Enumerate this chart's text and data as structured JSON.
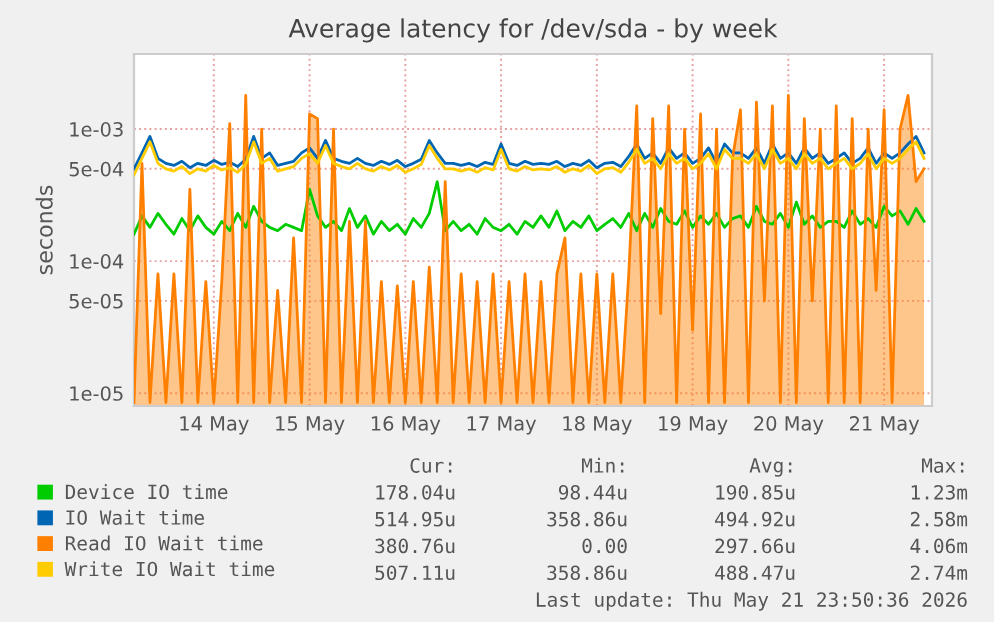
{
  "chart_data": {
    "type": "line",
    "title": "Average latency for /dev/sda - by week",
    "ylabel": "seconds",
    "log": "y",
    "ylim": [
      8e-06,
      0.0037
    ],
    "yticks": [
      {
        "value": 1e-05,
        "label": "1e-05"
      },
      {
        "value": 5e-05,
        "label": "5e-05"
      },
      {
        "value": 0.0001,
        "label": "1e-04"
      },
      {
        "value": 0.0005,
        "label": "5e-04"
      },
      {
        "value": 0.001,
        "label": "1e-03"
      }
    ],
    "xlim": [
      "2026-05-13T16:00",
      "2026-05-22T00:00"
    ],
    "xticks": [
      {
        "value": "2026-05-14T12:00",
        "label": "14 May"
      },
      {
        "value": "2026-05-15T12:00",
        "label": "15 May"
      },
      {
        "value": "2026-05-16T12:00",
        "label": "16 May"
      },
      {
        "value": "2026-05-17T12:00",
        "label": "17 May"
      },
      {
        "value": "2026-05-18T12:00",
        "label": "18 May"
      },
      {
        "value": "2026-05-19T12:00",
        "label": "19 May"
      },
      {
        "value": "2026-05-20T12:00",
        "label": "20 May"
      },
      {
        "value": "2026-05-21T12:00",
        "label": "21 May"
      }
    ],
    "grid": true,
    "legend": "bottom",
    "x": [
      "2026-05-13T16:00",
      "2026-05-13T18:00",
      "2026-05-13T20:00",
      "2026-05-13T22:00",
      "2026-05-14T00:00",
      "2026-05-14T02:00",
      "2026-05-14T04:00",
      "2026-05-14T06:00",
      "2026-05-14T08:00",
      "2026-05-14T10:00",
      "2026-05-14T12:00",
      "2026-05-14T14:00",
      "2026-05-14T16:00",
      "2026-05-14T18:00",
      "2026-05-14T20:00",
      "2026-05-14T22:00",
      "2026-05-15T00:00",
      "2026-05-15T02:00",
      "2026-05-15T04:00",
      "2026-05-15T06:00",
      "2026-05-15T08:00",
      "2026-05-15T10:00",
      "2026-05-15T12:00",
      "2026-05-15T14:00",
      "2026-05-15T16:00",
      "2026-05-15T18:00",
      "2026-05-15T20:00",
      "2026-05-15T22:00",
      "2026-05-16T00:00",
      "2026-05-16T02:00",
      "2026-05-16T04:00",
      "2026-05-16T06:00",
      "2026-05-16T08:00",
      "2026-05-16T10:00",
      "2026-05-16T12:00",
      "2026-05-16T14:00",
      "2026-05-16T16:00",
      "2026-05-16T18:00",
      "2026-05-16T20:00",
      "2026-05-16T22:00",
      "2026-05-17T00:00",
      "2026-05-17T02:00",
      "2026-05-17T04:00",
      "2026-05-17T06:00",
      "2026-05-17T08:00",
      "2026-05-17T10:00",
      "2026-05-17T12:00",
      "2026-05-17T14:00",
      "2026-05-17T16:00",
      "2026-05-17T18:00",
      "2026-05-17T20:00",
      "2026-05-17T22:00",
      "2026-05-18T00:00",
      "2026-05-18T02:00",
      "2026-05-18T04:00",
      "2026-05-18T06:00",
      "2026-05-18T08:00",
      "2026-05-18T10:00",
      "2026-05-18T12:00",
      "2026-05-18T14:00",
      "2026-05-18T16:00",
      "2026-05-18T18:00",
      "2026-05-18T20:00",
      "2026-05-18T22:00",
      "2026-05-19T00:00",
      "2026-05-19T02:00",
      "2026-05-19T04:00",
      "2026-05-19T06:00",
      "2026-05-19T08:00",
      "2026-05-19T10:00",
      "2026-05-19T12:00",
      "2026-05-19T14:00",
      "2026-05-19T16:00",
      "2026-05-19T18:00",
      "2026-05-19T20:00",
      "2026-05-19T22:00",
      "2026-05-20T00:00",
      "2026-05-20T02:00",
      "2026-05-20T04:00",
      "2026-05-20T06:00",
      "2026-05-20T08:00",
      "2026-05-20T10:00",
      "2026-05-20T12:00",
      "2026-05-20T14:00",
      "2026-05-20T16:00",
      "2026-05-20T18:00",
      "2026-05-20T20:00",
      "2026-05-20T22:00",
      "2026-05-21T00:00",
      "2026-05-21T02:00",
      "2026-05-21T04:00",
      "2026-05-21T06:00",
      "2026-05-21T08:00",
      "2026-05-21T10:00",
      "2026-05-21T12:00",
      "2026-05-21T14:00",
      "2026-05-21T16:00",
      "2026-05-21T18:00",
      "2026-05-21T20:00",
      "2026-05-21T22:00"
    ],
    "series": [
      {
        "name": "Device IO time",
        "color": "#00cc00",
        "values": [
          0.00016,
          0.00022,
          0.00018,
          0.00023,
          0.00019,
          0.00016,
          0.00021,
          0.00017,
          0.00022,
          0.00018,
          0.00016,
          0.0002,
          0.00017,
          0.00023,
          0.00018,
          0.00026,
          0.0002,
          0.00018,
          0.00017,
          0.00019,
          0.00018,
          0.00017,
          0.00035,
          0.00022,
          0.00018,
          0.0002,
          0.00017,
          0.00025,
          0.00018,
          0.00022,
          0.00016,
          0.0002,
          0.00017,
          0.00019,
          0.00016,
          0.00021,
          0.00018,
          0.00023,
          0.0004,
          0.00017,
          0.0002,
          0.00017,
          0.00019,
          0.00016,
          0.00021,
          0.00018,
          0.00017,
          0.00019,
          0.00016,
          0.0002,
          0.00018,
          0.00022,
          0.00018,
          0.00024,
          0.00017,
          0.0002,
          0.00018,
          0.00022,
          0.00017,
          0.00019,
          0.00021,
          0.00018,
          0.00023,
          0.00017,
          0.00023,
          0.00018,
          0.00025,
          0.0002,
          0.00019,
          0.00024,
          0.00018,
          0.00022,
          0.00019,
          0.00023,
          0.00018,
          0.00021,
          0.00022,
          0.00018,
          0.00026,
          0.0002,
          0.00019,
          0.00023,
          0.00018,
          0.00028,
          0.00019,
          0.00022,
          0.00018,
          0.0002,
          0.0002,
          0.00018,
          0.00024,
          0.00019,
          0.00021,
          0.00018,
          0.00026,
          0.00022,
          0.00024,
          0.00019,
          0.00025,
          0.0002
        ]
      },
      {
        "name": "IO Wait time",
        "color": "#0066b3",
        "values": [
          0.0005,
          0.00066,
          0.00088,
          0.0006,
          0.00055,
          0.00053,
          0.00057,
          0.00051,
          0.00055,
          0.00053,
          0.00058,
          0.00054,
          0.00056,
          0.00052,
          0.00059,
          0.00088,
          0.0006,
          0.00066,
          0.00053,
          0.00055,
          0.00057,
          0.00066,
          0.00072,
          0.0006,
          0.00082,
          0.0006,
          0.00057,
          0.00055,
          0.0006,
          0.00055,
          0.00053,
          0.00057,
          0.00054,
          0.00058,
          0.00052,
          0.00055,
          0.00059,
          0.00082,
          0.00066,
          0.00055,
          0.00055,
          0.00053,
          0.00055,
          0.00052,
          0.00056,
          0.00054,
          0.00077,
          0.00055,
          0.00053,
          0.00057,
          0.00054,
          0.00055,
          0.00054,
          0.00057,
          0.00052,
          0.00055,
          0.00053,
          0.00058,
          0.00051,
          0.00055,
          0.00056,
          0.00052,
          0.00062,
          0.00077,
          0.0006,
          0.00066,
          0.00055,
          0.00072,
          0.0006,
          0.00066,
          0.00055,
          0.0006,
          0.00072,
          0.00055,
          0.00077,
          0.00066,
          0.00066,
          0.0006,
          0.00072,
          0.00055,
          0.00077,
          0.0006,
          0.00066,
          0.00055,
          0.00072,
          0.0006,
          0.00066,
          0.00055,
          0.0006,
          0.00066,
          0.00055,
          0.0006,
          0.00072,
          0.00055,
          0.00066,
          0.0006,
          0.00066,
          0.00077,
          0.00088,
          0.00066
        ]
      },
      {
        "name": "Read IO Wait time",
        "type": "area",
        "color": "#ff8000",
        "values": [
          8.5e-06,
          0.00055,
          8.5e-06,
          8e-05,
          8.5e-06,
          8e-05,
          8.5e-06,
          0.00035,
          8.5e-06,
          7e-05,
          8.5e-06,
          7e-05,
          0.0011,
          8.5e-06,
          0.0018,
          8.5e-06,
          0.001,
          8.5e-06,
          6e-05,
          8.5e-06,
          0.00015,
          8.5e-06,
          0.0013,
          0.0012,
          8.5e-06,
          0.001,
          8.5e-06,
          0.0002,
          8.5e-06,
          0.0002,
          8.5e-06,
          7e-05,
          8.5e-06,
          6.5e-05,
          8.5e-06,
          7e-05,
          8.5e-06,
          9e-05,
          8.5e-06,
          0.0004,
          8.5e-06,
          8e-05,
          8.5e-06,
          7e-05,
          8.5e-06,
          8e-05,
          8.5e-06,
          7e-05,
          8.5e-06,
          8e-05,
          8.5e-06,
          7e-05,
          8.5e-06,
          8e-05,
          0.00015,
          8.5e-06,
          8e-05,
          8.5e-06,
          8e-05,
          8.5e-06,
          8e-05,
          8.5e-06,
          8e-05,
          0.0015,
          8.5e-06,
          0.0012,
          4e-05,
          0.0015,
          8.5e-06,
          0.001,
          3e-05,
          0.0013,
          8.5e-06,
          0.001,
          8.5e-06,
          0.0006,
          0.0014,
          8.5e-06,
          0.0016,
          5e-05,
          0.0015,
          8.5e-06,
          0.0018,
          8.5e-06,
          0.0012,
          5e-05,
          0.001,
          8.5e-06,
          0.0015,
          8.5e-06,
          0.0012,
          8.5e-06,
          0.001,
          6e-05,
          0.0014,
          8.5e-06,
          0.001,
          0.0018,
          0.0004,
          0.0005
        ]
      },
      {
        "name": "Write IO Wait time",
        "color": "#ffcc00",
        "values": [
          0.00045,
          0.0006,
          0.0008,
          0.00055,
          0.0005,
          0.00048,
          0.00052,
          0.00046,
          0.0005,
          0.00048,
          0.00053,
          0.00049,
          0.00051,
          0.00047,
          0.00054,
          0.0008,
          0.00055,
          0.0006,
          0.00048,
          0.0005,
          0.00052,
          0.0006,
          0.00065,
          0.00055,
          0.00075,
          0.00055,
          0.00052,
          0.0005,
          0.00055,
          0.0005,
          0.00048,
          0.00052,
          0.00049,
          0.00053,
          0.00047,
          0.0005,
          0.00054,
          0.00075,
          0.0006,
          0.0005,
          0.0005,
          0.00048,
          0.0005,
          0.00047,
          0.00051,
          0.00049,
          0.0007,
          0.0005,
          0.00048,
          0.00052,
          0.00049,
          0.0005,
          0.00049,
          0.00052,
          0.00047,
          0.0005,
          0.00048,
          0.00053,
          0.00046,
          0.0005,
          0.00051,
          0.00047,
          0.00056,
          0.0007,
          0.00055,
          0.0006,
          0.0005,
          0.00065,
          0.00055,
          0.0006,
          0.0005,
          0.00055,
          0.00065,
          0.0005,
          0.0007,
          0.0006,
          0.0006,
          0.00055,
          0.00065,
          0.0005,
          0.0007,
          0.00055,
          0.0006,
          0.0005,
          0.00065,
          0.00055,
          0.0006,
          0.0005,
          0.00055,
          0.0006,
          0.0005,
          0.00055,
          0.00065,
          0.0005,
          0.0006,
          0.00055,
          0.0006,
          0.0007,
          0.0008,
          0.0006
        ]
      }
    ],
    "annotations": [
      "Cur:",
      "Min:",
      "Avg:",
      "Max:",
      "178.04u",
      "98.44u",
      "190.85u",
      "1.23m",
      "514.95u",
      "358.86u",
      "494.92u",
      "2.58m",
      "380.76u",
      "0.00",
      "297.66u",
      "4.06m",
      "507.11u",
      "358.86u",
      "488.47u",
      "2.74m",
      "Last update: Thu May 21 23:50:36 2026"
    ]
  }
}
